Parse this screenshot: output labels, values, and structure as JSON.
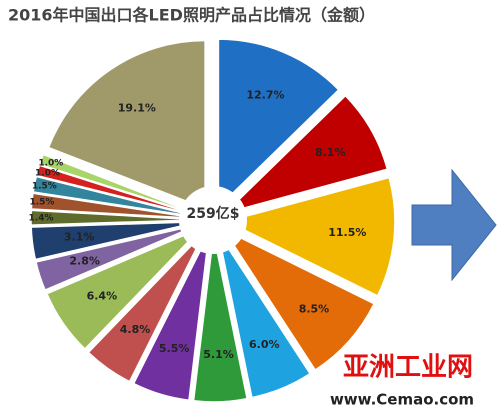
{
  "chart_data": {
    "type": "pie",
    "title": "2016年中国出口各LED照明产品占比情况（金额）",
    "center_label": "259亿$",
    "watermark": "亚洲工业网",
    "watermark_url": "www.Cemao.com",
    "values": [
      12.7,
      8.1,
      11.5,
      8.5,
      6.0,
      5.1,
      5.5,
      4.8,
      6.4,
      2.8,
      3.1,
      1.4,
      1.5,
      1.5,
      1.0,
      1.0,
      19.1
    ],
    "value_labels": [
      "12.7%",
      "8.1%",
      "11.5%",
      "8.5%",
      "6.0%",
      "5.1%",
      "5.5%",
      "4.8%",
      "6.4%",
      "2.8%",
      "3.1%",
      "1.4%",
      "1.5%",
      "1.5%",
      "1.0%",
      "1.0%",
      "19.1%"
    ],
    "colors": [
      "#1f6fc4",
      "#c00000",
      "#f2b800",
      "#e36c09",
      "#1fa3e0",
      "#2e9a3a",
      "#7030a0",
      "#c0504d",
      "#9bbb59",
      "#8064a2",
      "#1f3f6e",
      "#5f6b2b",
      "#a0522d",
      "#31859c",
      "#d62020",
      "#a9d46a",
      "#a09a6a"
    ]
  }
}
